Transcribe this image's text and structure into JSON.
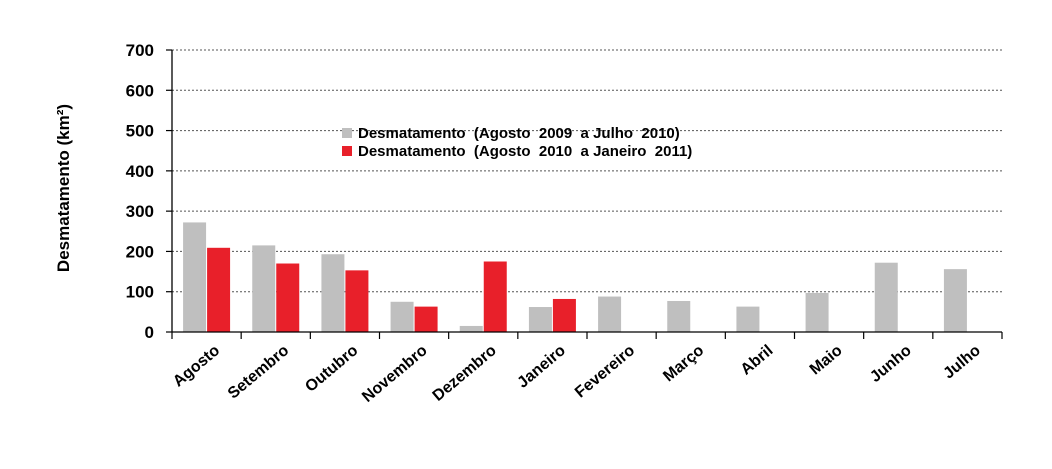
{
  "chart_data": {
    "type": "bar",
    "title": "",
    "xlabel": "",
    "ylabel": "Desmatamento (km²)",
    "ylim": [
      0,
      700
    ],
    "yticks": [
      0,
      100,
      200,
      300,
      400,
      500,
      600,
      700
    ],
    "grid": "horizontal-dotted",
    "legend_position": "top-center",
    "categories": [
      "Agosto",
      "Setembro",
      "Outubro",
      "Novembro",
      "Dezembro",
      "Janeiro",
      "Fevereiro",
      "Março",
      "Abril",
      "Maio",
      "Junho",
      "Julho"
    ],
    "series": [
      {
        "name": "Desmatamento  (Agosto  2009  a Julho  2010)",
        "color": "#bfbfbf",
        "values": [
          272,
          215,
          193,
          75,
          15,
          62,
          88,
          77,
          63,
          97,
          172,
          156
        ]
      },
      {
        "name": "Desmatamento  (Agosto  2010  a Janeiro  2011)",
        "color": "#e8202a",
        "values": [
          209,
          170,
          153,
          63,
          175,
          82,
          null,
          null,
          null,
          null,
          null,
          null
        ]
      }
    ]
  }
}
